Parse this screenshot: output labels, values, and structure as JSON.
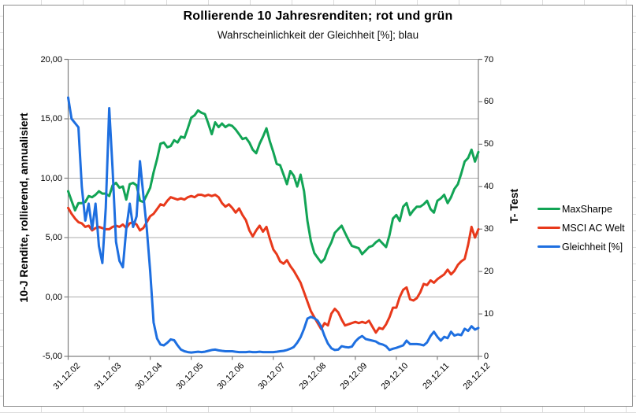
{
  "chart": {
    "title": "Rollierende 10 Jahresrenditen; rot und grün",
    "subtitle": "Wahrscheinlichkeit der Gleichheit [%]; blau",
    "left_axis": {
      "title": "10-J Rendite, rollierend, annualisiert",
      "tick_labels": [
        "20,00",
        "15,00",
        "10,00",
        "5,00",
        "0,00",
        "-5,00"
      ],
      "min": -5,
      "max": 20
    },
    "right_axis": {
      "title": "T- Test",
      "tick_labels": [
        "70",
        "60",
        "50",
        "40",
        "30",
        "20",
        "10",
        "0"
      ],
      "min": 0,
      "max": 70
    },
    "x_axis": {
      "tick_labels": [
        "31.12.02",
        "31.12.03",
        "30.12.04",
        "30.12.05",
        "30.12.06",
        "30.12.07",
        "29.12.08",
        "29.12.09",
        "29.12.10",
        "29.12.11",
        "28.12.12"
      ]
    }
  },
  "chart_data": {
    "type": "line",
    "title": "Rollierende 10 Jahresrenditen; rot und grün",
    "subtitle": "Wahrscheinlichkeit der Gleichheit [%]; blau",
    "x_tick_labels": [
      "31.12.02",
      "31.12.03",
      "30.12.04",
      "30.12.05",
      "30.12.06",
      "30.12.07",
      "29.12.08",
      "29.12.09",
      "29.12.10",
      "29.12.11",
      "28.12.12"
    ],
    "sampling": "monthly, Dez 2002 bis Dez 2012 (121 Punkte, Werte aus Grafik geschätzt)",
    "left_ylabel": "10-J Rendite, rollierend, annualisiert",
    "right_ylabel": "T- Test",
    "left_ylim": [
      -5,
      20
    ],
    "right_ylim": [
      0,
      70
    ],
    "grid": "horizontal",
    "legend_position": "right",
    "series": [
      {
        "name": "MaxSharpe",
        "axis": "left",
        "color": "#12A455",
        "values": [
          8.9,
          8.1,
          7.3,
          7.9,
          7.9,
          8.0,
          8.5,
          8.4,
          8.6,
          8.9,
          8.7,
          8.7,
          8.5,
          9.4,
          9.6,
          9.2,
          9.3,
          8.2,
          9.5,
          9.6,
          9.4,
          8.1,
          8.0,
          8.6,
          9.2,
          10.5,
          11.6,
          12.9,
          13.0,
          12.6,
          12.7,
          13.2,
          13.0,
          13.5,
          13.4,
          14.2,
          15.1,
          15.3,
          15.7,
          15.5,
          15.4,
          14.6,
          13.7,
          14.7,
          14.3,
          14.6,
          14.3,
          14.5,
          14.4,
          14.1,
          13.7,
          13.3,
          13.4,
          13.0,
          12.4,
          12.1,
          12.9,
          13.5,
          14.2,
          13.1,
          12.2,
          11.2,
          11.1,
          10.3,
          9.5,
          10.6,
          10.2,
          9.3,
          10.3,
          8.9,
          6.4,
          4.7,
          3.7,
          3.3,
          2.9,
          3.2,
          4.0,
          4.6,
          5.4,
          5.7,
          6.0,
          5.4,
          4.8,
          4.3,
          4.2,
          4.1,
          3.6,
          3.9,
          4.2,
          4.3,
          4.6,
          4.8,
          4.5,
          4.2,
          5.2,
          6.6,
          6.9,
          6.4,
          7.6,
          7.9,
          6.9,
          7.3,
          7.6,
          7.6,
          7.8,
          8.1,
          7.4,
          7.1,
          8.1,
          8.3,
          8.6,
          7.9,
          8.4,
          9.1,
          9.5,
          10.4,
          11.4,
          11.7,
          12.4,
          11.4,
          12.2
        ]
      },
      {
        "name": "MSCI AC Welt",
        "axis": "left",
        "color": "#E8391B",
        "values": [
          7.5,
          7.0,
          6.6,
          6.3,
          6.2,
          5.9,
          6.0,
          5.6,
          5.8,
          5.9,
          5.8,
          5.7,
          5.7,
          5.9,
          6.0,
          5.9,
          6.1,
          5.8,
          6.2,
          6.3,
          6.1,
          5.6,
          5.8,
          6.3,
          6.8,
          7.0,
          7.4,
          7.8,
          7.7,
          8.1,
          8.4,
          8.3,
          8.2,
          8.3,
          8.2,
          8.4,
          8.5,
          8.4,
          8.6,
          8.6,
          8.5,
          8.6,
          8.5,
          8.6,
          8.4,
          7.9,
          7.6,
          7.8,
          7.5,
          7.1,
          7.45,
          6.9,
          6.45,
          5.6,
          5.1,
          5.6,
          6.0,
          5.5,
          5.9,
          4.9,
          4.0,
          3.6,
          3.0,
          2.8,
          3.1,
          2.6,
          2.2,
          1.7,
          1.2,
          0.4,
          -0.4,
          -1.2,
          -1.7,
          -2.2,
          -2.7,
          -2.2,
          -2.4,
          -1.4,
          -1.0,
          -1.3,
          -1.9,
          -2.4,
          -2.3,
          -2.2,
          -2.1,
          -2.2,
          -2.1,
          -2.2,
          -2.0,
          -2.5,
          -3.0,
          -2.6,
          -2.7,
          -2.3,
          -1.7,
          -0.9,
          -0.9,
          0.0,
          0.6,
          0.8,
          -0.2,
          -0.3,
          -0.1,
          0.4,
          1.1,
          1.0,
          1.4,
          1.2,
          1.5,
          1.7,
          1.9,
          2.3,
          1.9,
          2.2,
          2.7,
          3.0,
          3.2,
          4.4,
          5.9,
          5.0,
          5.7
        ]
      },
      {
        "name": "Gleichheit [%]",
        "axis": "right",
        "color": "#1E6FE0",
        "values": [
          61,
          56,
          55,
          54,
          40,
          32,
          36,
          30,
          36,
          26,
          22,
          35,
          58.5,
          44,
          27,
          22.5,
          21,
          30,
          36,
          30.5,
          33,
          46,
          38,
          30,
          20,
          8,
          4.2,
          2.8,
          2.6,
          3.2,
          4.0,
          3.8,
          2.6,
          1.6,
          1.2,
          1.0,
          0.9,
          1.0,
          1.1,
          1.0,
          1.1,
          1.3,
          1.5,
          1.6,
          1.4,
          1.3,
          1.2,
          1.2,
          1.2,
          1.1,
          1.0,
          1.0,
          1.0,
          1.1,
          1.0,
          1.0,
          1.1,
          1.0,
          1.0,
          1.0,
          1.0,
          1.1,
          1.2,
          1.3,
          1.5,
          1.8,
          2.2,
          3.2,
          4.5,
          6.5,
          8.9,
          9.3,
          9.0,
          8.4,
          7.0,
          4.8,
          3.0,
          1.9,
          1.5,
          1.6,
          2.4,
          2.2,
          2.1,
          2.3,
          3.5,
          4.3,
          4.8,
          4.1,
          3.9,
          3.7,
          3.5,
          3.0,
          2.8,
          2.4,
          1.5,
          1.8,
          2.0,
          2.3,
          2.6,
          3.7,
          2.9,
          2.9,
          2.9,
          2.8,
          2.6,
          3.3,
          4.8,
          5.8,
          4.6,
          3.7,
          4.6,
          4.3,
          5.8,
          4.9,
          5.2,
          5.0,
          6.5,
          6.0,
          7.1,
          6.3,
          6.7
        ]
      }
    ],
    "colors": {
      "grid": "#ababab",
      "axis": "#808080",
      "text": "#000000"
    }
  }
}
